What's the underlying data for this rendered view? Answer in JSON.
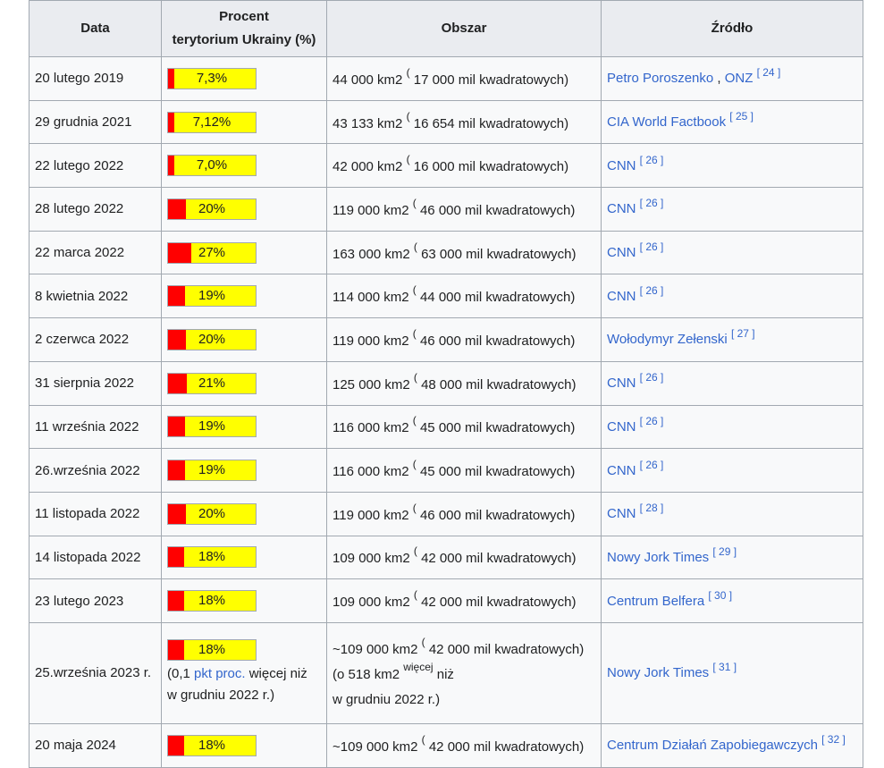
{
  "headers": {
    "date": "Data",
    "percent_line1": "Procent",
    "percent_line2": "terytorium Ukrainy (%)",
    "area": "Obszar",
    "source": "Źródło"
  },
  "colors": {
    "fill_occupied": "#ff0000",
    "fill_rest": "#ffff00",
    "link": "#3366cc"
  },
  "rows": [
    {
      "date": "20 lutego 2019",
      "percent": 7.3,
      "percent_label": "7,3%",
      "area_km2": "44 000 km2",
      "paren": "(",
      "area_mi": "17 000 mil kwadratowych)",
      "source": "Petro Poroszenko",
      "source_sep": " , ",
      "source2": "ONZ",
      "ref": "[ 24 ]"
    },
    {
      "date": "29 grudnia 2021",
      "percent": 7.12,
      "percent_label": "7,12%",
      "area_km2": "43 133 km2",
      "paren": "(",
      "area_mi": "16 654 mil kwadratowych)",
      "source": "CIA World Factbook",
      "source_sep": "",
      "source2": "",
      "ref": "[ 25 ]"
    },
    {
      "date": "22 lutego 2022",
      "percent": 7.0,
      "percent_label": "7,0%",
      "area_km2": "42 000 km2",
      "paren": "(",
      "area_mi": "16 000 mil kwadratowych)",
      "source": "CNN",
      "source_sep": "",
      "source2": "",
      "ref": "[ 26 ]"
    },
    {
      "date": "28 lutego 2022",
      "percent": 20,
      "percent_label": "20%",
      "area_km2": "119 000 km2",
      "paren": "(",
      "area_mi": "46 000 mil kwadratowych)",
      "source": "CNN",
      "source_sep": "",
      "source2": "",
      "ref": "[ 26 ]"
    },
    {
      "date": "22 marca 2022",
      "percent": 27,
      "percent_label": "27%",
      "area_km2": "163 000 km2",
      "paren": "(",
      "area_mi": "63 000 mil kwadratowych)",
      "source": "CNN",
      "source_sep": "",
      "source2": "",
      "ref": "[ 26 ]"
    },
    {
      "date": "8 kwietnia 2022",
      "percent": 19,
      "percent_label": "19%",
      "area_km2": "114 000 km2",
      "paren": "(",
      "area_mi": "44 000 mil kwadratowych)",
      "source": "CNN",
      "source_sep": "",
      "source2": "",
      "ref": "[ 26 ]"
    },
    {
      "date": "2 czerwca 2022",
      "percent": 20,
      "percent_label": "20%",
      "area_km2": "119 000 km2",
      "paren": "(",
      "area_mi": "46 000 mil kwadratowych)",
      "source": "Wołodymyr Zełenski",
      "source_sep": "",
      "source2": "",
      "ref": "[ 27 ]"
    },
    {
      "date": "31 sierpnia 2022",
      "percent": 21,
      "percent_label": "21%",
      "area_km2": "125 000 km2",
      "paren": "(",
      "area_mi": "48 000 mil kwadratowych)",
      "source": "CNN",
      "source_sep": "",
      "source2": "",
      "ref": "[ 26 ]"
    },
    {
      "date": "11 września 2022",
      "percent": 19,
      "percent_label": "19%",
      "area_km2": "116 000 km2",
      "paren": "(",
      "area_mi": "45 000 mil kwadratowych)",
      "source": "CNN",
      "source_sep": "",
      "source2": "",
      "ref": "[ 26 ]"
    },
    {
      "date": "26.września 2022",
      "percent": 19,
      "percent_label": "19%",
      "area_km2": "116 000 km2",
      "paren": "(",
      "area_mi": "45 000 mil kwadratowych)",
      "source": "CNN",
      "source_sep": "",
      "source2": "",
      "ref": "[ 26 ]"
    },
    {
      "date": "11 listopada 2022",
      "percent": 20,
      "percent_label": "20%",
      "area_km2": "119 000 km2",
      "paren": "(",
      "area_mi": "46 000 mil kwadratowych)",
      "source": "CNN",
      "source_sep": "",
      "source2": "",
      "ref": "[ 28 ]"
    },
    {
      "date": "14 listopada 2022",
      "percent": 18,
      "percent_label": "18%",
      "area_km2": "109 000 km2",
      "paren": "(",
      "area_mi": "42 000 mil kwadratowych)",
      "source": "Nowy Jork Times",
      "source_sep": "",
      "source2": "",
      "ref": "[ 29 ]"
    },
    {
      "date": "23 lutego 2023",
      "percent": 18,
      "percent_label": "18%",
      "area_km2": "109 000 km2",
      "paren": "(",
      "area_mi": "42 000 mil kwadratowych)",
      "source": "Centrum Belfera",
      "source_sep": "",
      "source2": "",
      "ref": "[ 30 ]"
    }
  ],
  "special_row": {
    "date": "25.września 2023 r.",
    "percent": 18,
    "percent_label": "18%",
    "note_a": "(0,1 ",
    "note_link": "pkt proc.",
    "note_b": " więcej niż",
    "note_c": "w grudniu 2022 r.)",
    "area_line1": "~109 000 km2",
    "paren": "(",
    "area_mi": "42 000 mil kwadratowych)",
    "area_line2a": "(o 518 km2",
    "area_line2_sup": "więcej",
    "area_line2b": "niż",
    "area_line3": "w grudniu 2022 r.)",
    "source": "Nowy Jork Times",
    "ref": "[ 31 ]"
  },
  "last_row": {
    "date": "20 maja 2024",
    "percent": 18,
    "percent_label": "18%",
    "area_km2": "~109 000 km2",
    "paren": "(",
    "area_mi": "42 000 mil kwadratowych)",
    "source": "Centrum Działań Zapobiegawczych",
    "ref": "[ 32 ]"
  }
}
